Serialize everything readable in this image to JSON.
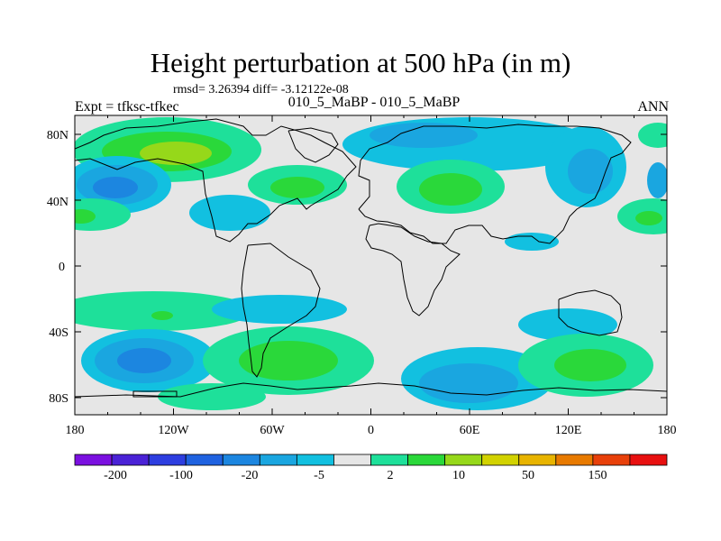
{
  "title": "Height perturbation at 500 hPa (in m)",
  "stats": "rmsd= 3.26394 diff= -3.12122e-08",
  "experiment_label": "Expt = tfksc-tfkec",
  "center_label": "010_5_MaBP - 010_5_MaBP",
  "season": "ANN",
  "lat_ticks": [
    "80N",
    "40N",
    "0",
    "40S",
    "80S"
  ],
  "lon_ticks": [
    "180",
    "120W",
    "60W",
    "0",
    "60E",
    "120E",
    "180"
  ],
  "colorbar": {
    "colors": [
      "#7b10e0",
      "#4a22d6",
      "#2d3ee0",
      "#1f62e0",
      "#1c86e0",
      "#1aa6e0",
      "#12c0e0",
      "#e6e6e6",
      "#1ee09a",
      "#2ad83a",
      "#96d81a",
      "#d2d200",
      "#e8b400",
      "#e87a00",
      "#e8400a",
      "#e81010"
    ],
    "labels": [
      "-200",
      "-100",
      "-20",
      "-5",
      "2",
      "10",
      "50",
      "150"
    ]
  },
  "legend_colors": {
    "blue_strong": "#1c86e0",
    "blue_light": "#1aa6e0",
    "cyan": "#12c0e0",
    "green_cyan": "#1ee09a",
    "green": "#2ad83a",
    "yellow_green": "#96d81a",
    "background": "#e6e6e6"
  }
}
